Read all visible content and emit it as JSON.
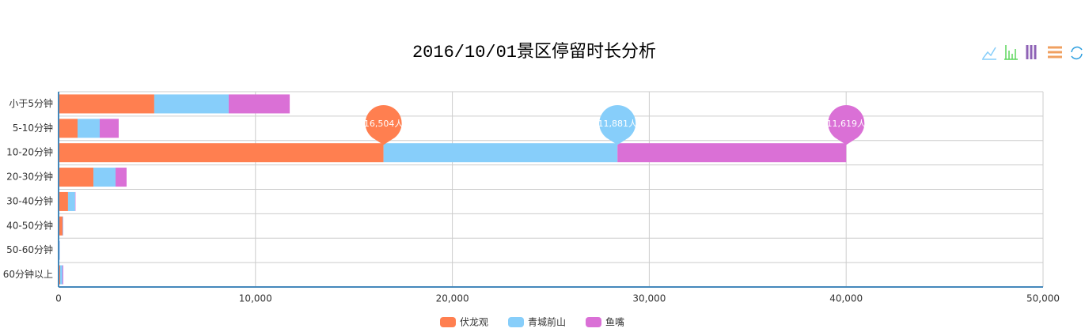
{
  "chart_data": {
    "type": "bar",
    "orientation": "horizontal",
    "stacked": true,
    "title": "2016/10/01景区停留时长分析",
    "categories": [
      "小于5分钟",
      "5-10分钟",
      "10-20分钟",
      "20-30分钟",
      "30-40分钟",
      "40-50分钟",
      "50-60分钟",
      "60分钟以上"
    ],
    "series": [
      {
        "name": "伏龙观",
        "color": "#ff7f50",
        "values": [
          4860,
          965,
          16504,
          1770,
          480,
          200,
          40,
          80
        ],
        "max_label": "16,504人"
      },
      {
        "name": "青城前山",
        "color": "#87cefa",
        "values": [
          3780,
          1125,
          11881,
          1125,
          360,
          30,
          20,
          120
        ],
        "max_label": "11,881人"
      },
      {
        "name": "鱼嘴",
        "color": "#da70d6",
        "values": [
          3100,
          965,
          11619,
          560,
          20,
          10,
          6,
          40
        ],
        "max_label": "11,619人"
      }
    ],
    "xlim": [
      0,
      50000
    ],
    "xticks": [
      0,
      {
        "value": 10000,
        "label": "10,000"
      },
      {
        "value": 20000,
        "label": "20,000"
      },
      {
        "value": 30000,
        "label": "30,000"
      },
      {
        "value": 40000,
        "label": "40,000"
      },
      {
        "value": 50000,
        "label": "50,000"
      }
    ],
    "grid": true,
    "legend": "bottom"
  }
}
